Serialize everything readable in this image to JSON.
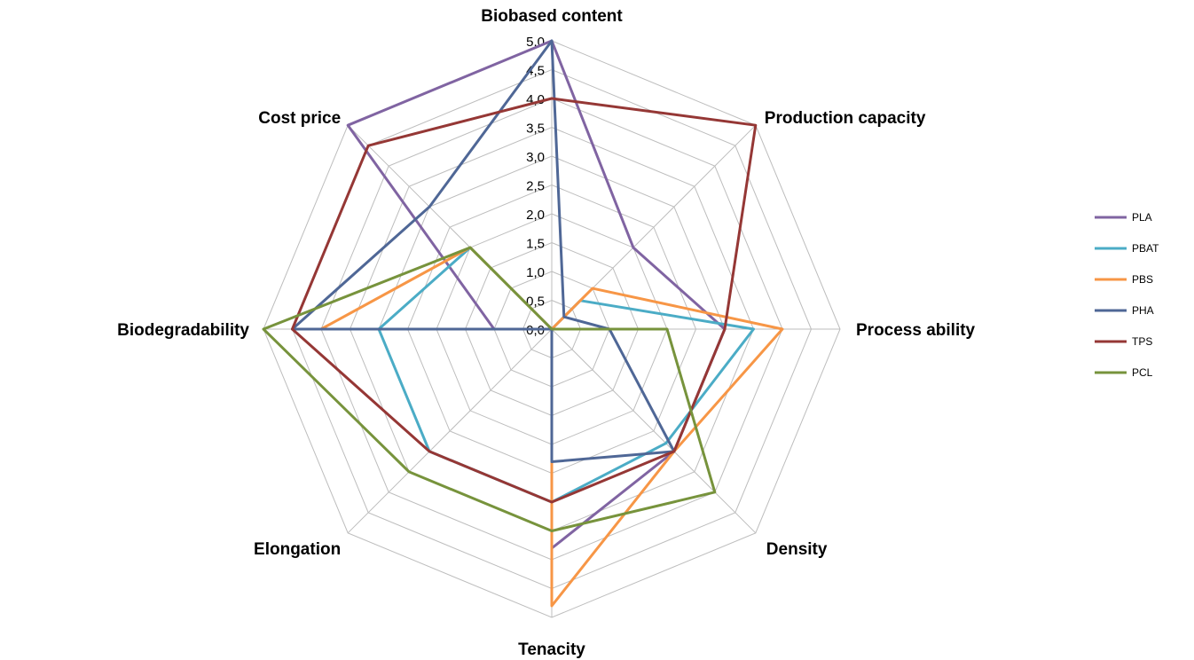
{
  "chart_data": {
    "type": "radar",
    "axes": [
      "Biobased content",
      "Production capacity",
      "Process ability",
      "Density",
      "Tenacity",
      "Elongation",
      "Biodegradability",
      "Cost price"
    ],
    "rlim": [
      0,
      5
    ],
    "ticks": [
      "0,0",
      "0,5",
      "1,0",
      "1,5",
      "2,0",
      "2,5",
      "3,0",
      "3,5",
      "4,0",
      "4,5",
      "5,0"
    ],
    "grid": true,
    "legend_position": "right",
    "series": [
      {
        "name": "PLA",
        "color": "#8064A2",
        "values": [
          5.0,
          2.0,
          3.0,
          3.0,
          3.8,
          0.0,
          1.0,
          5.0
        ]
      },
      {
        "name": "PBAT",
        "color": "#4BACC6",
        "values": [
          0.0,
          0.7,
          3.5,
          2.8,
          3.0,
          3.0,
          3.0,
          2.0
        ]
      },
      {
        "name": "PBS",
        "color": "#F79646",
        "values": [
          0.0,
          1.0,
          4.0,
          3.0,
          4.8,
          0.0,
          4.0,
          2.0
        ]
      },
      {
        "name": "PHA",
        "color": "#4F6796",
        "values": [
          5.0,
          0.3,
          1.0,
          3.0,
          2.3,
          0.0,
          4.5,
          3.0
        ]
      },
      {
        "name": "TPS",
        "color": "#953735",
        "values": [
          4.0,
          5.0,
          3.0,
          3.0,
          3.0,
          3.0,
          4.5,
          4.5
        ]
      },
      {
        "name": "PCL",
        "color": "#77933C",
        "values": [
          0.0,
          0.0,
          2.0,
          4.0,
          3.5,
          3.5,
          5.0,
          2.0
        ]
      }
    ]
  }
}
